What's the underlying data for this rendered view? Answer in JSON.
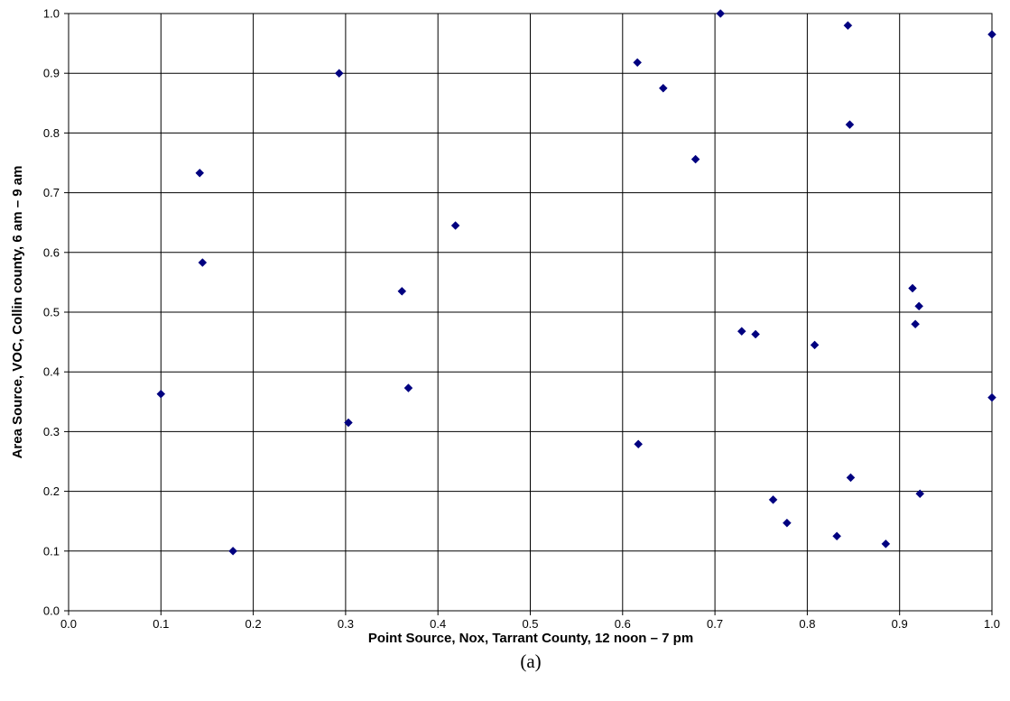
{
  "chart_data": {
    "type": "scatter",
    "xlabel": "Point Source, Nox, Tarrant County, 12 noon – 7 pm",
    "ylabel": "Area Source, VOC, Collin county, 6 am – 9 am",
    "caption": "(a)",
    "xlim": [
      0,
      1
    ],
    "ylim": [
      0,
      1
    ],
    "x_ticks": [
      "0.0",
      "0.1",
      "0.2",
      "0.3",
      "0.4",
      "0.5",
      "0.6",
      "0.7",
      "0.8",
      "0.9",
      "1.0"
    ],
    "y_ticks": [
      "0.0",
      "0.1",
      "0.2",
      "0.3",
      "0.4",
      "0.5",
      "0.6",
      "0.7",
      "0.8",
      "0.9",
      "1.0"
    ],
    "grid": true,
    "marker": "diamond",
    "marker_color": "#000080",
    "series": [
      {
        "points": [
          {
            "x": 0.1,
            "y": 0.363
          },
          {
            "x": 0.142,
            "y": 0.733
          },
          {
            "x": 0.145,
            "y": 0.583
          },
          {
            "x": 0.178,
            "y": 0.1
          },
          {
            "x": 0.293,
            "y": 0.9
          },
          {
            "x": 0.303,
            "y": 0.315
          },
          {
            "x": 0.361,
            "y": 0.535
          },
          {
            "x": 0.368,
            "y": 0.373
          },
          {
            "x": 0.419,
            "y": 0.645
          },
          {
            "x": 0.616,
            "y": 0.918
          },
          {
            "x": 0.617,
            "y": 0.279
          },
          {
            "x": 0.644,
            "y": 0.875
          },
          {
            "x": 0.679,
            "y": 0.756
          },
          {
            "x": 0.706,
            "y": 1.0
          },
          {
            "x": 0.729,
            "y": 0.468
          },
          {
            "x": 0.744,
            "y": 0.463
          },
          {
            "x": 0.763,
            "y": 0.186
          },
          {
            "x": 0.778,
            "y": 0.147
          },
          {
            "x": 0.808,
            "y": 0.445
          },
          {
            "x": 0.832,
            "y": 0.125
          },
          {
            "x": 0.844,
            "y": 0.98
          },
          {
            "x": 0.846,
            "y": 0.814
          },
          {
            "x": 0.847,
            "y": 0.223
          },
          {
            "x": 0.885,
            "y": 0.112
          },
          {
            "x": 0.914,
            "y": 0.54
          },
          {
            "x": 0.917,
            "y": 0.48
          },
          {
            "x": 0.921,
            "y": 0.51
          },
          {
            "x": 0.922,
            "y": 0.196
          },
          {
            "x": 1.0,
            "y": 0.965
          },
          {
            "x": 1.0,
            "y": 0.357
          }
        ]
      }
    ]
  }
}
